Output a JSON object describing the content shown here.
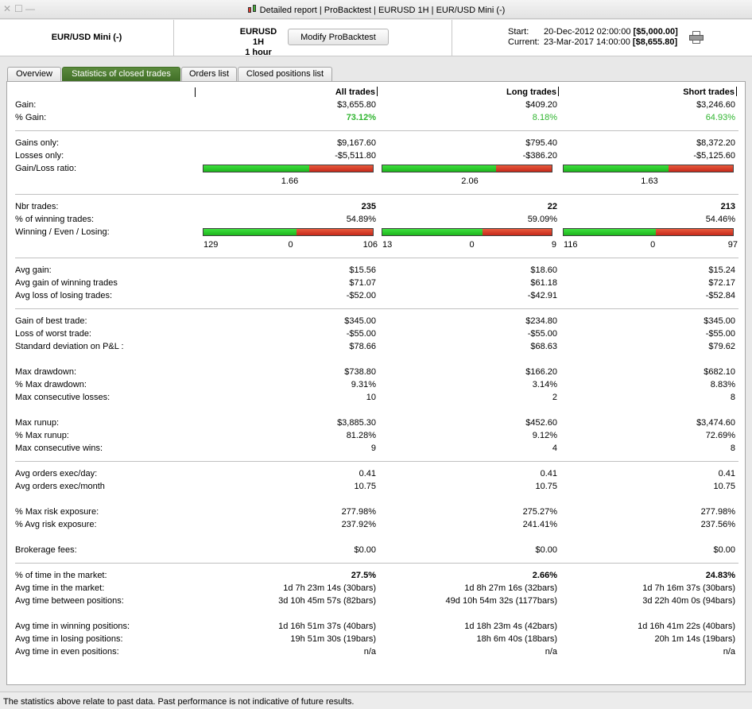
{
  "window": {
    "title": "Detailed report | ProBacktest | EURUSD 1H | EUR/USD Mini (-)",
    "controls": [
      "✕",
      "☐",
      "—"
    ]
  },
  "header": {
    "instrument": "EUR/USD Mini (-)",
    "timeframe_line1": "EURUSD 1H",
    "timeframe_line2": "1 hour",
    "modify_button": "Modify ProBacktest",
    "start_label": "Start:",
    "start_date": "20-Dec-2012 02:00:00",
    "start_value": "[$5,000.00]",
    "current_label": "Current:",
    "current_date": "23-Mar-2017 14:00:00",
    "current_value": "[$8,655.80]"
  },
  "tabs": [
    "Overview",
    "Statistics of closed trades",
    "Orders list",
    "Closed positions list"
  ],
  "columns": [
    "All trades",
    "Long trades",
    "Short trades"
  ],
  "stats": {
    "gain": {
      "label": "Gain:",
      "values": [
        "$3,655.80",
        "$409.20",
        "$3,246.60"
      ]
    },
    "pct_gain": {
      "label": "% Gain:",
      "values": [
        "73.12%",
        "8.18%",
        "64.93%"
      ]
    },
    "gains_only": {
      "label": "Gains only:",
      "values": [
        "$9,167.60",
        "$795.40",
        "$8,372.20"
      ]
    },
    "losses_only": {
      "label": "Losses only:",
      "values": [
        "-$5,511.80",
        "-$386.20",
        "-$5,125.60"
      ]
    },
    "gain_loss_ratio": {
      "label": "Gain/Loss ratio:",
      "values": [
        "1.66",
        "2.06",
        "1.63"
      ],
      "fractions": [
        0.624,
        0.673,
        0.62
      ]
    },
    "nbr_trades": {
      "label": "Nbr trades:",
      "values": [
        "235",
        "22",
        "213"
      ]
    },
    "pct_winning": {
      "label": "% of winning trades:",
      "values": [
        "54.89%",
        "59.09%",
        "54.46%"
      ]
    },
    "wel": {
      "label": "Winning / Even / Losing:",
      "groups": [
        {
          "win": "129",
          "even": "0",
          "lose": "106",
          "w": 129,
          "e": 0,
          "l": 106
        },
        {
          "win": "13",
          "even": "0",
          "lose": "9",
          "w": 13,
          "e": 0,
          "l": 9
        },
        {
          "win": "116",
          "even": "0",
          "lose": "97",
          "w": 116,
          "e": 0,
          "l": 97
        }
      ]
    },
    "avg_gain": {
      "label": "Avg gain:",
      "values": [
        "$15.56",
        "$18.60",
        "$15.24"
      ]
    },
    "avg_gain_winning": {
      "label": "Avg gain of winning trades",
      "values": [
        "$71.07",
        "$61.18",
        "$72.17"
      ]
    },
    "avg_loss_losing": {
      "label": "Avg loss of losing trades:",
      "values": [
        "-$52.00",
        "-$42.91",
        "-$52.84"
      ]
    },
    "best_trade": {
      "label": "Gain of best trade:",
      "values": [
        "$345.00",
        "$234.80",
        "$345.00"
      ]
    },
    "worst_trade": {
      "label": "Loss of worst trade:",
      "values": [
        "-$55.00",
        "-$55.00",
        "-$55.00"
      ]
    },
    "std_dev": {
      "label": "Standard deviation on P&L :",
      "values": [
        "$78.66",
        "$68.63",
        "$79.62"
      ]
    },
    "max_drawdown": {
      "label": "Max drawdown:",
      "values": [
        "$738.80",
        "$166.20",
        "$682.10"
      ]
    },
    "pct_max_drawdown": {
      "label": "% Max drawdown:",
      "values": [
        "9.31%",
        "3.14%",
        "8.83%"
      ]
    },
    "max_consec_losses": {
      "label": "Max consecutive losses:",
      "values": [
        "10",
        "2",
        "8"
      ]
    },
    "max_runup": {
      "label": "Max runup:",
      "values": [
        "$3,885.30",
        "$452.60",
        "$3,474.60"
      ]
    },
    "pct_max_runup": {
      "label": "% Max runup:",
      "values": [
        "81.28%",
        "9.12%",
        "72.69%"
      ]
    },
    "max_consec_wins": {
      "label": "Max consecutive wins:",
      "values": [
        "9",
        "4",
        "8"
      ]
    },
    "orders_day": {
      "label": "Avg orders exec/day:",
      "values": [
        "0.41",
        "0.41",
        "0.41"
      ]
    },
    "orders_month": {
      "label": "Avg orders exec/month",
      "values": [
        "10.75",
        "10.75",
        "10.75"
      ]
    },
    "max_risk": {
      "label": "% Max risk exposure:",
      "values": [
        "277.98%",
        "275.27%",
        "277.98%"
      ]
    },
    "avg_risk": {
      "label": "% Avg risk exposure:",
      "values": [
        "237.92%",
        "241.41%",
        "237.56%"
      ]
    },
    "fees": {
      "label": "Brokerage fees:",
      "values": [
        "$0.00",
        "$0.00",
        "$0.00"
      ]
    },
    "pct_time_market": {
      "label": "% of time in the market:",
      "values": [
        "27.5%",
        "2.66%",
        "24.83%"
      ]
    },
    "avg_time_market": {
      "label": "Avg time in the market:",
      "values": [
        "1d 7h 23m 14s (30bars)",
        "1d 8h 27m 16s (32bars)",
        "1d 7h 16m 37s (30bars)"
      ]
    },
    "avg_time_between": {
      "label": "Avg time between positions:",
      "values": [
        "3d 10h 45m 57s (82bars)",
        "49d 10h 54m 32s (1177bars)",
        "3d 22h 40m 0s (94bars)"
      ]
    },
    "avg_time_winning": {
      "label": "Avg time in winning positions:",
      "values": [
        "1d 16h 51m 37s (40bars)",
        "1d 18h 23m 4s (42bars)",
        "1d 16h 41m 22s (40bars)"
      ]
    },
    "avg_time_losing": {
      "label": "Avg time in losing positions:",
      "values": [
        "19h 51m 30s (19bars)",
        "18h 6m 40s (18bars)",
        "20h 1m 14s (19bars)"
      ]
    },
    "avg_time_even": {
      "label": "Avg time in even positions:",
      "values": [
        "n/a",
        "n/a",
        "n/a"
      ]
    }
  },
  "footer": "The statistics above relate to past data. Past performance is not indicative of future results."
}
